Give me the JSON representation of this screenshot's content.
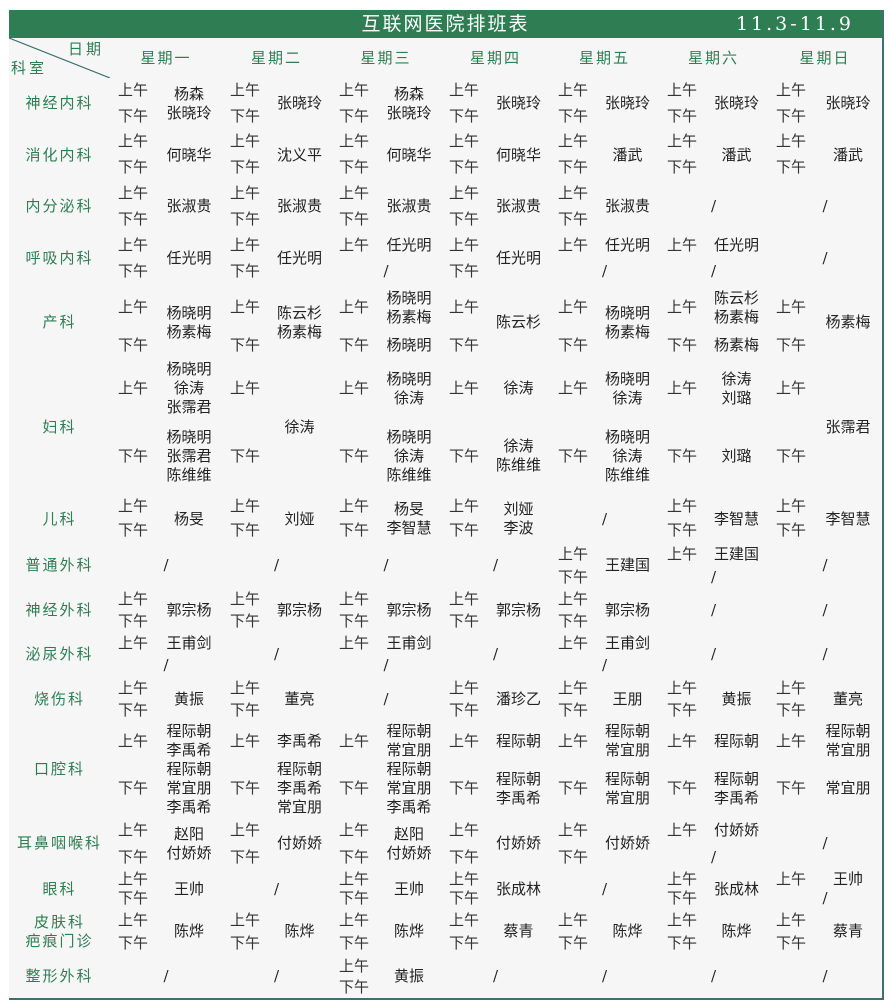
{
  "title": "互联网医院排班表",
  "date_range": "11.3-11.9",
  "corner": {
    "date_label": "日期",
    "dept_label": "科室"
  },
  "days": [
    "星期一",
    "星期二",
    "星期三",
    "星期四",
    "星期五",
    "星期六",
    "星期日"
  ],
  "am_label": "上午",
  "pm_label": "下午",
  "none_mark": "/",
  "colors": {
    "title_bar": "#2f7d52",
    "header_text": "#2f7d52",
    "grid_line": "#3f6f6f",
    "cell_bg": "#f6f6f6"
  },
  "departments": [
    {
      "name": "神经内科",
      "cells": [
        {
          "t": "m",
          "name": "杨森\n张晓玲"
        },
        {
          "t": "m",
          "name": "张晓玲"
        },
        {
          "t": "m",
          "name": "杨森\n张晓玲"
        },
        {
          "t": "m",
          "name": "张晓玲"
        },
        {
          "t": "m",
          "name": "张晓玲"
        },
        {
          "t": "m",
          "name": "张晓玲"
        },
        {
          "t": "m",
          "name": "张晓玲"
        }
      ]
    },
    {
      "name": "消化内科",
      "cells": [
        {
          "t": "m",
          "name": "何晓华"
        },
        {
          "t": "m",
          "name": "沈义平"
        },
        {
          "t": "m",
          "name": "何晓华"
        },
        {
          "t": "m",
          "name": "何晓华"
        },
        {
          "t": "m",
          "name": "潘武"
        },
        {
          "t": "m",
          "name": "潘武"
        },
        {
          "t": "m",
          "name": "潘武"
        }
      ]
    },
    {
      "name": "内分泌科",
      "cells": [
        {
          "t": "m",
          "name": "张淑贵"
        },
        {
          "t": "m",
          "name": "张淑贵"
        },
        {
          "t": "m",
          "name": "张淑贵"
        },
        {
          "t": "m",
          "name": "张淑贵"
        },
        {
          "t": "m",
          "name": "张淑贵"
        },
        {
          "t": "x"
        },
        {
          "t": "x"
        }
      ]
    },
    {
      "name": "呼吸内科",
      "cells": [
        {
          "t": "m",
          "name": "任光明"
        },
        {
          "t": "m",
          "name": "任光明"
        },
        {
          "t": "a",
          "am": "任光明"
        },
        {
          "t": "m",
          "name": "任光明"
        },
        {
          "t": "a",
          "am": "任光明"
        },
        {
          "t": "a",
          "am": "任光明"
        },
        {
          "t": "x"
        }
      ]
    },
    {
      "name": "产科",
      "cells": [
        {
          "t": "m",
          "name": "杨晓明\n杨素梅"
        },
        {
          "t": "m",
          "name": "陈云杉\n杨素梅"
        },
        {
          "t": "s",
          "am": "杨晓明\n杨素梅",
          "pm": "杨晓明"
        },
        {
          "t": "m",
          "name": "陈云杉"
        },
        {
          "t": "m",
          "name": "杨晓明\n杨素梅"
        },
        {
          "t": "s",
          "am": "陈云杉\n杨素梅",
          "pm": "杨素梅"
        },
        {
          "t": "m",
          "name": "杨素梅"
        }
      ]
    },
    {
      "name": "妇科",
      "cells": [
        {
          "t": "s",
          "am": "杨晓明\n徐涛\n张霈君",
          "pm": "杨晓明\n张霈君\n陈维维"
        },
        {
          "t": "m",
          "name": "徐涛"
        },
        {
          "t": "s",
          "am": "杨晓明\n徐涛",
          "pm": "杨晓明\n徐涛\n陈维维"
        },
        {
          "t": "s",
          "am": "徐涛",
          "pm": "徐涛\n陈维维"
        },
        {
          "t": "s",
          "am": "杨晓明\n徐涛",
          "pm": "杨晓明\n徐涛\n陈维维"
        },
        {
          "t": "s",
          "am": "徐涛\n刘璐",
          "pm": "刘璐"
        },
        {
          "t": "m",
          "name": "张霈君"
        }
      ]
    },
    {
      "name": "儿科",
      "cells": [
        {
          "t": "m",
          "name": "杨旻"
        },
        {
          "t": "m",
          "name": "刘娅"
        },
        {
          "t": "m",
          "name": "杨旻\n李智慧"
        },
        {
          "t": "m",
          "name": "刘娅\n李波"
        },
        {
          "t": "x"
        },
        {
          "t": "m",
          "name": "李智慧"
        },
        {
          "t": "m",
          "name": "李智慧"
        }
      ]
    },
    {
      "name": "普通外科",
      "cells": [
        {
          "t": "x"
        },
        {
          "t": "x"
        },
        {
          "t": "x"
        },
        {
          "t": "x"
        },
        {
          "t": "m",
          "name": "王建国"
        },
        {
          "t": "a",
          "am": "王建国"
        },
        {
          "t": "x"
        }
      ]
    },
    {
      "name": "神经外科",
      "cells": [
        {
          "t": "m",
          "name": "郭宗杨"
        },
        {
          "t": "m",
          "name": "郭宗杨"
        },
        {
          "t": "m",
          "name": "郭宗杨"
        },
        {
          "t": "m",
          "name": "郭宗杨"
        },
        {
          "t": "m",
          "name": "郭宗杨"
        },
        {
          "t": "x"
        },
        {
          "t": "x"
        }
      ]
    },
    {
      "name": "泌尿外科",
      "cells": [
        {
          "t": "a",
          "am": "王甫剑"
        },
        {
          "t": "x"
        },
        {
          "t": "a",
          "am": "王甫剑"
        },
        {
          "t": "x"
        },
        {
          "t": "a",
          "am": "王甫剑"
        },
        {
          "t": "x"
        },
        {
          "t": "x"
        }
      ]
    },
    {
      "name": "烧伤科",
      "cells": [
        {
          "t": "m",
          "name": "黄振"
        },
        {
          "t": "m",
          "name": "董亮"
        },
        {
          "t": "x"
        },
        {
          "t": "m",
          "name": "潘珍乙"
        },
        {
          "t": "m",
          "name": "王朋"
        },
        {
          "t": "m",
          "name": "黄振"
        },
        {
          "t": "m",
          "name": "董亮"
        }
      ]
    },
    {
      "name": "口腔科",
      "cells": [
        {
          "t": "s",
          "am": "程际朝\n李禹希",
          "pm": "程际朝\n常宜朋\n李禹希"
        },
        {
          "t": "s",
          "am": "李禹希",
          "pm": "程际朝\n李禹希\n常宜朋"
        },
        {
          "t": "s",
          "am": "程际朝\n常宜朋",
          "pm": "程际朝\n常宜朋\n李禹希"
        },
        {
          "t": "s",
          "am": "程际朝",
          "pm": "程际朝\n李禹希"
        },
        {
          "t": "s",
          "am": "程际朝\n常宜朋",
          "pm": "程际朝\n常宜朋"
        },
        {
          "t": "s",
          "am": "程际朝",
          "pm": "程际朝\n李禹希"
        },
        {
          "t": "s",
          "am": "程际朝\n常宜朋",
          "pm": "常宜朋"
        }
      ]
    },
    {
      "name": "耳鼻咽喉科",
      "cells": [
        {
          "t": "m",
          "name": "赵阳\n付娇娇"
        },
        {
          "t": "m",
          "name": "付娇娇"
        },
        {
          "t": "m",
          "name": "赵阳\n付娇娇"
        },
        {
          "t": "m",
          "name": "付娇娇"
        },
        {
          "t": "m",
          "name": "付娇娇"
        },
        {
          "t": "a",
          "am": "付娇娇"
        },
        {
          "t": "x"
        }
      ]
    },
    {
      "name": "眼科",
      "cells": [
        {
          "t": "m",
          "name": "王帅"
        },
        {
          "t": "x"
        },
        {
          "t": "m",
          "name": "王帅"
        },
        {
          "t": "m",
          "name": "张成林"
        },
        {
          "t": "x"
        },
        {
          "t": "m",
          "name": "张成林"
        },
        {
          "t": "a",
          "am": "王帅"
        }
      ]
    },
    {
      "name": "皮肤科\n疤痕门诊",
      "cells": [
        {
          "t": "m",
          "name": "陈烨"
        },
        {
          "t": "m",
          "name": "陈烨"
        },
        {
          "t": "m",
          "name": "陈烨"
        },
        {
          "t": "m",
          "name": "蔡青"
        },
        {
          "t": "m",
          "name": "陈烨"
        },
        {
          "t": "m",
          "name": "陈烨"
        },
        {
          "t": "m",
          "name": "蔡青"
        }
      ]
    },
    {
      "name": "整形外科",
      "cells": [
        {
          "t": "x"
        },
        {
          "t": "x"
        },
        {
          "t": "m",
          "name": "黄振"
        },
        {
          "t": "x"
        },
        {
          "t": "x"
        },
        {
          "t": "x"
        },
        {
          "t": "x"
        }
      ]
    }
  ]
}
